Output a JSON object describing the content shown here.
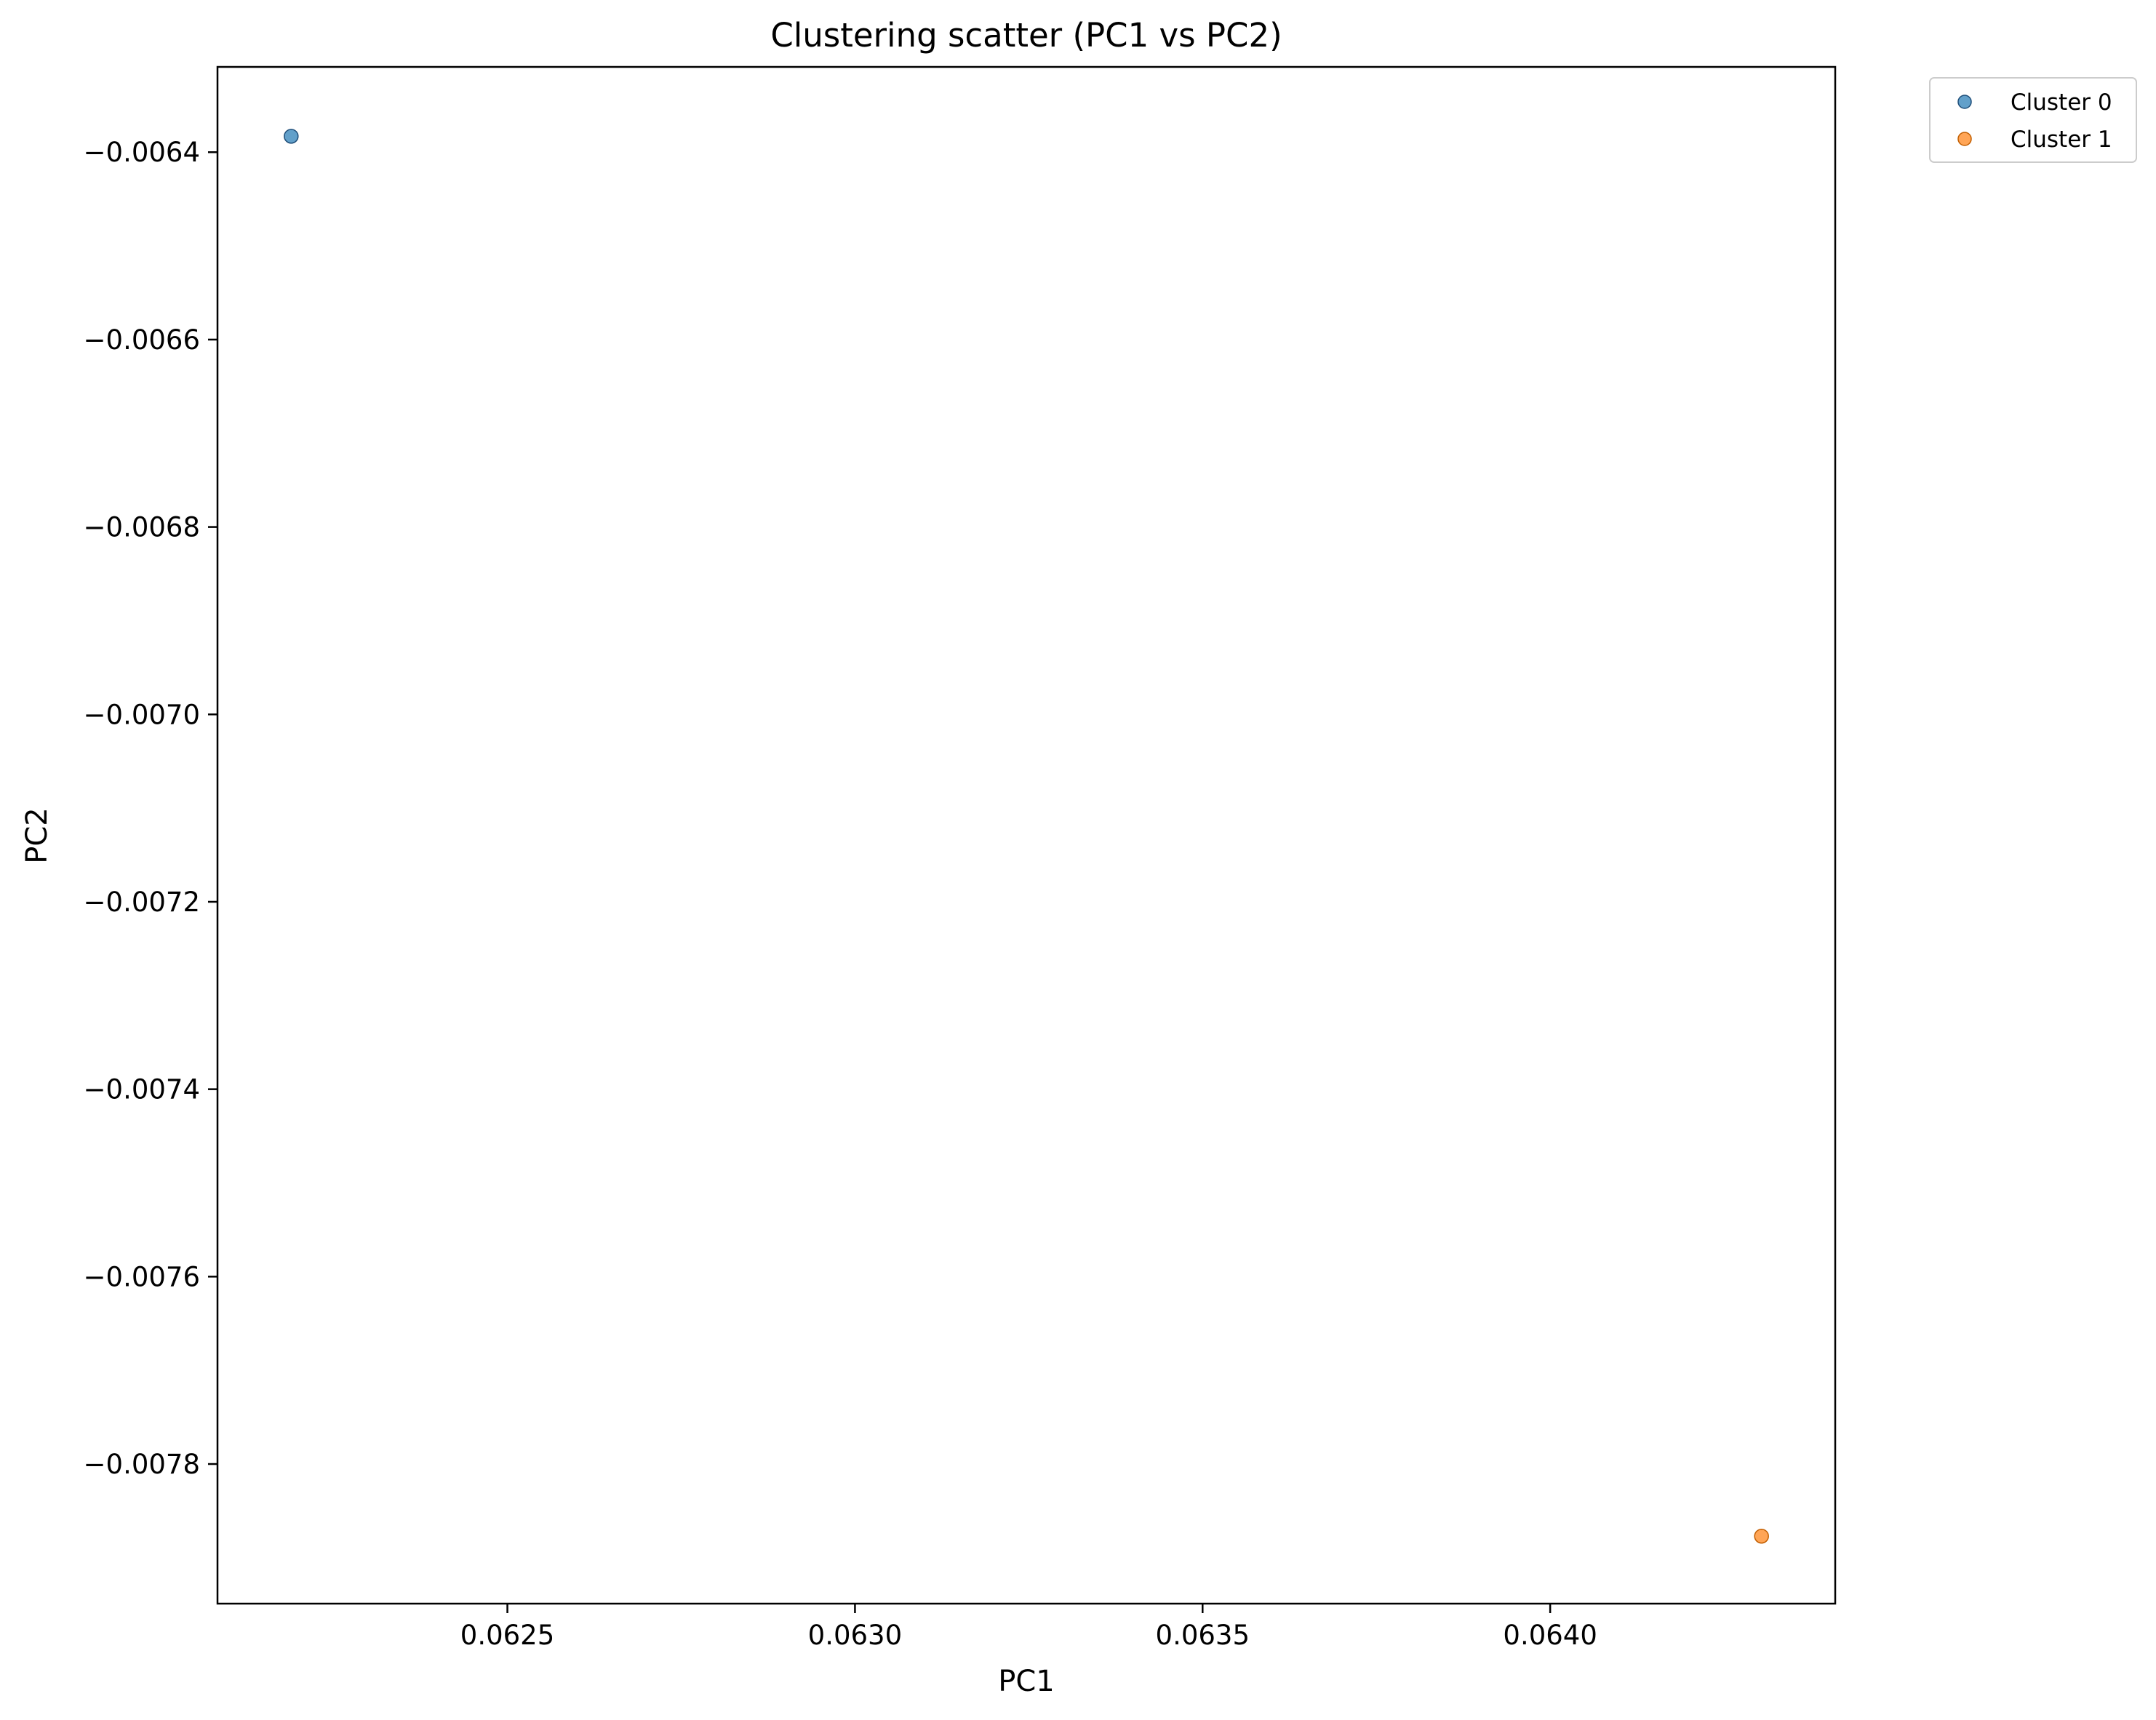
{
  "chart_data": {
    "type": "scatter",
    "title": "Clustering scatter (PC1 vs PC2)",
    "xlabel": "PC1",
    "ylabel": "PC2",
    "xlim": [
      0.062083,
      0.06441
    ],
    "ylim": [
      -0.007949,
      -0.006309
    ],
    "xticks": [
      0.0625,
      0.063,
      0.0635,
      0.064
    ],
    "xtick_labels": [
      "0.0625",
      "0.0630",
      "0.0635",
      "0.0640"
    ],
    "yticks": [
      -0.0064,
      -0.0066,
      -0.0068,
      -0.007,
      -0.0072,
      -0.0074,
      -0.0076,
      -0.0078
    ],
    "ytick_labels": [
      "−0.0064",
      "−0.0066",
      "−0.0068",
      "−0.0070",
      "−0.0072",
      "−0.0074",
      "−0.0076",
      "−0.0078"
    ],
    "grid": false,
    "legend_position": "outside top-right",
    "series": [
      {
        "name": "Cluster 0",
        "color": "#1f77b4",
        "points": [
          {
            "x": 0.062189,
            "y": -0.006383
          }
        ]
      },
      {
        "name": "Cluster 1",
        "color": "#ff7f0e",
        "points": [
          {
            "x": 0.064304,
            "y": -0.007877
          }
        ]
      }
    ]
  }
}
